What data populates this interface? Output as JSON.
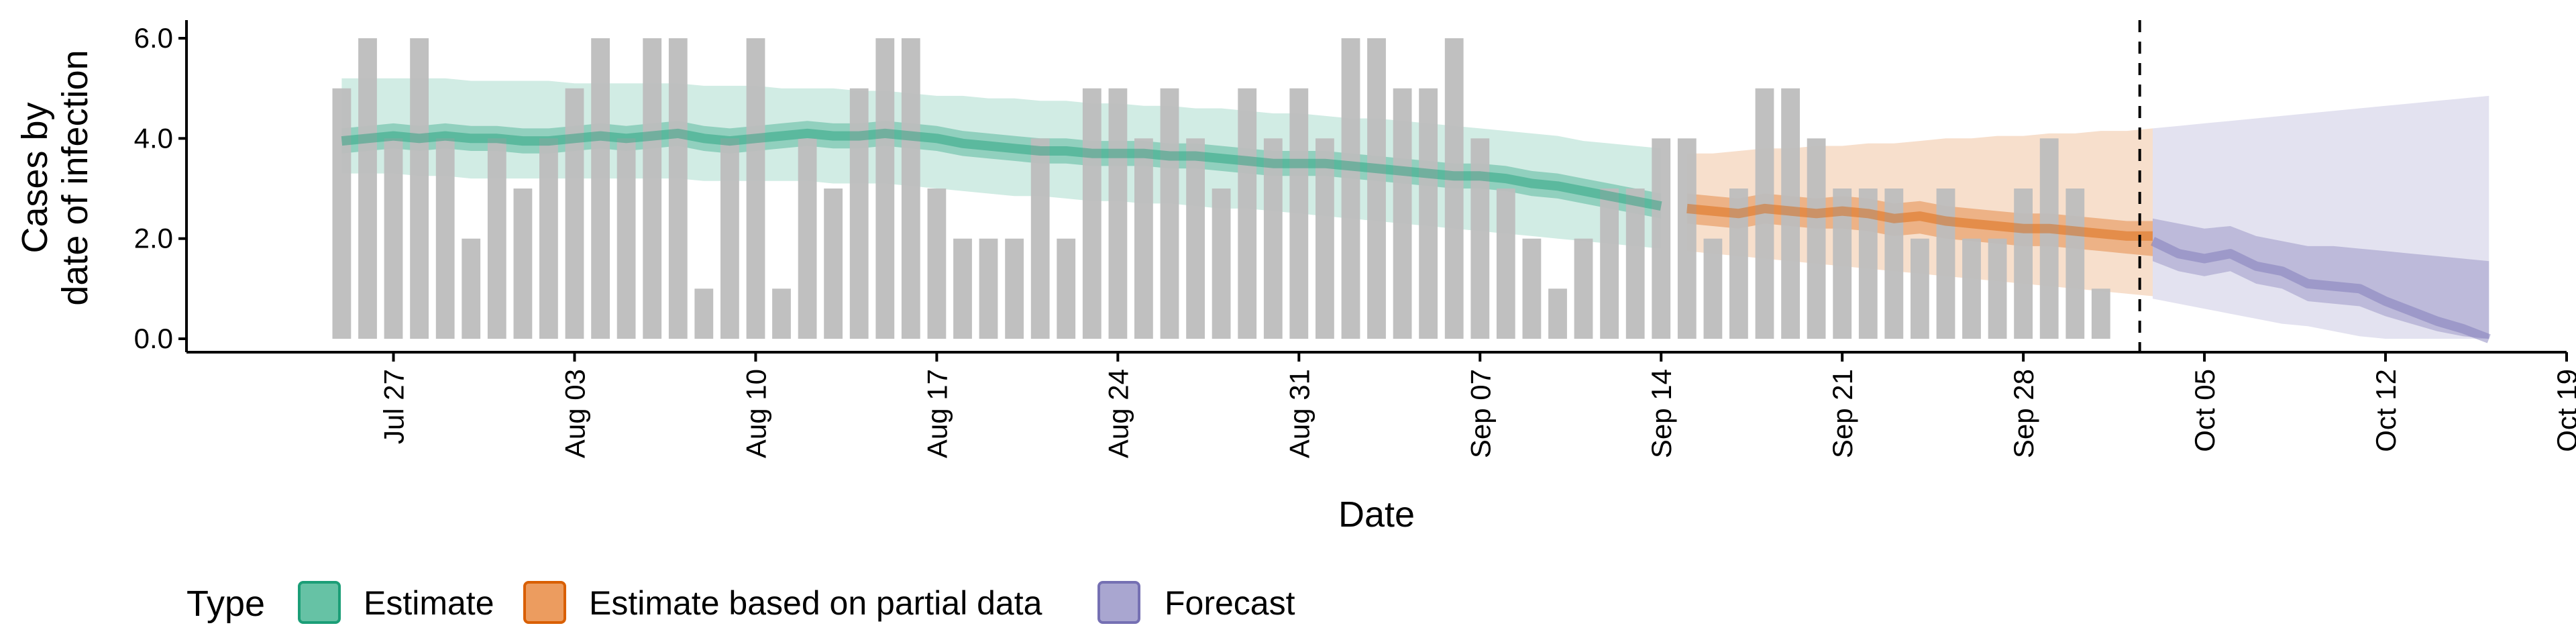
{
  "chart_data": {
    "type": "bar",
    "xlabel": "Date",
    "ylabel_lines": [
      "Cases by",
      "date of infection"
    ],
    "ylim": [
      0,
      6.0
    ],
    "y_ticks": [
      "0.0",
      "2.0",
      "4.0",
      "6.0"
    ],
    "x_ticks": [
      {
        "date": "2020-07-27",
        "label": "Jul 27"
      },
      {
        "date": "2020-08-03",
        "label": "Aug 03"
      },
      {
        "date": "2020-08-10",
        "label": "Aug 10"
      },
      {
        "date": "2020-08-17",
        "label": "Aug 17"
      },
      {
        "date": "2020-08-24",
        "label": "Aug 24"
      },
      {
        "date": "2020-08-31",
        "label": "Aug 31"
      },
      {
        "date": "2020-09-07",
        "label": "Sep 07"
      },
      {
        "date": "2020-09-14",
        "label": "Sep 14"
      },
      {
        "date": "2020-09-21",
        "label": "Sep 21"
      },
      {
        "date": "2020-09-28",
        "label": "Sep 28"
      },
      {
        "date": "2020-10-05",
        "label": "Oct 05"
      },
      {
        "date": "2020-10-12",
        "label": "Oct 12"
      },
      {
        "date": "2020-10-19",
        "label": "Oct 19"
      }
    ],
    "xlim": [
      "2020-07-19",
      "2020-10-19"
    ],
    "report_date": "2020-10-02",
    "bars": {
      "start_date": "2020-07-25",
      "values": [
        5,
        6,
        4,
        6,
        4,
        2,
        4,
        3,
        4,
        5,
        6,
        4,
        6,
        6,
        1,
        4,
        6,
        1,
        4,
        3,
        5,
        6,
        6,
        3,
        2,
        2,
        2,
        4,
        2,
        5,
        5,
        4,
        5,
        4,
        3,
        5,
        4,
        5,
        4,
        6,
        6,
        5,
        5,
        6,
        4,
        3,
        2,
        1,
        2,
        3,
        3,
        4,
        4,
        2,
        3,
        5,
        5,
        4,
        3,
        3,
        3,
        2,
        3,
        2,
        2,
        3,
        4,
        3,
        1
      ],
      "color": "#bdbdbd"
    },
    "legend": {
      "title": "Type",
      "items": [
        {
          "label": "Estimate",
          "fill": "#66c2a5",
          "stroke": "#1b9e77"
        },
        {
          "label": "Estimate based on partial data",
          "fill": "#ec9c5f",
          "stroke": "#d95f02"
        },
        {
          "label": "Forecast",
          "fill": "#a9a6d0",
          "stroke": "#7570b3"
        }
      ]
    },
    "series": [
      {
        "type": "Estimate",
        "color": "#1b9e77",
        "start_date": "2020-07-25",
        "median": [
          3.95,
          4.0,
          4.05,
          4.0,
          4.05,
          4.0,
          4.0,
          3.95,
          3.95,
          4.0,
          4.05,
          4.0,
          4.05,
          4.1,
          4.0,
          3.95,
          4.0,
          4.05,
          4.1,
          4.05,
          4.05,
          4.1,
          4.05,
          4.0,
          3.9,
          3.85,
          3.8,
          3.75,
          3.75,
          3.7,
          3.7,
          3.7,
          3.65,
          3.65,
          3.6,
          3.55,
          3.5,
          3.5,
          3.5,
          3.45,
          3.4,
          3.35,
          3.3,
          3.25,
          3.25,
          3.2,
          3.1,
          3.05,
          2.95,
          2.85,
          2.75,
          2.65
        ],
        "inner_lo": [
          3.7,
          3.75,
          3.8,
          3.75,
          3.8,
          3.75,
          3.75,
          3.7,
          3.7,
          3.75,
          3.8,
          3.75,
          3.8,
          3.85,
          3.75,
          3.7,
          3.75,
          3.8,
          3.85,
          3.8,
          3.8,
          3.85,
          3.8,
          3.75,
          3.65,
          3.6,
          3.55,
          3.5,
          3.5,
          3.45,
          3.45,
          3.45,
          3.4,
          3.4,
          3.35,
          3.3,
          3.25,
          3.25,
          3.25,
          3.2,
          3.15,
          3.1,
          3.05,
          3.0,
          3.0,
          2.95,
          2.85,
          2.8,
          2.7,
          2.6,
          2.5,
          2.4
        ],
        "inner_hi": [
          4.2,
          4.25,
          4.3,
          4.25,
          4.3,
          4.25,
          4.25,
          4.2,
          4.2,
          4.25,
          4.3,
          4.25,
          4.3,
          4.35,
          4.25,
          4.2,
          4.25,
          4.3,
          4.35,
          4.3,
          4.3,
          4.35,
          4.3,
          4.25,
          4.15,
          4.1,
          4.05,
          4.0,
          4.0,
          3.95,
          3.95,
          3.95,
          3.9,
          3.9,
          3.85,
          3.8,
          3.75,
          3.75,
          3.75,
          3.7,
          3.65,
          3.6,
          3.55,
          3.5,
          3.5,
          3.45,
          3.35,
          3.3,
          3.2,
          3.1,
          3.0,
          2.9
        ],
        "outer_lo": [
          3.3,
          3.3,
          3.3,
          3.25,
          3.25,
          3.2,
          3.2,
          3.2,
          3.2,
          3.2,
          3.2,
          3.2,
          3.2,
          3.2,
          3.15,
          3.15,
          3.15,
          3.15,
          3.15,
          3.1,
          3.1,
          3.1,
          3.05,
          3.0,
          2.95,
          2.9,
          2.85,
          2.85,
          2.8,
          2.75,
          2.75,
          2.7,
          2.7,
          2.65,
          2.6,
          2.6,
          2.55,
          2.5,
          2.45,
          2.4,
          2.35,
          2.3,
          2.25,
          2.2,
          2.15,
          2.1,
          2.05,
          2.0,
          1.95,
          1.9,
          1.85,
          1.8
        ],
        "outer_hi": [
          5.2,
          5.2,
          5.2,
          5.2,
          5.2,
          5.15,
          5.15,
          5.15,
          5.15,
          5.1,
          5.1,
          5.1,
          5.1,
          5.1,
          5.05,
          5.05,
          5.05,
          5.0,
          5.0,
          5.0,
          4.95,
          4.95,
          4.9,
          4.85,
          4.85,
          4.8,
          4.8,
          4.75,
          4.75,
          4.7,
          4.7,
          4.65,
          4.65,
          4.6,
          4.6,
          4.55,
          4.5,
          4.5,
          4.45,
          4.4,
          4.4,
          4.35,
          4.3,
          4.25,
          4.2,
          4.15,
          4.1,
          4.05,
          3.95,
          3.9,
          3.85,
          3.8
        ]
      },
      {
        "type": "Estimate based on partial data",
        "color": "#d95f02",
        "start_date": "2020-09-15",
        "median": [
          2.6,
          2.55,
          2.5,
          2.6,
          2.55,
          2.5,
          2.55,
          2.5,
          2.4,
          2.45,
          2.35,
          2.3,
          2.25,
          2.2,
          2.2,
          2.15,
          2.1,
          2.05,
          2.05
        ],
        "inner_lo": [
          2.3,
          2.25,
          2.2,
          2.3,
          2.25,
          2.2,
          2.2,
          2.15,
          2.05,
          2.1,
          2.0,
          1.95,
          1.9,
          1.85,
          1.85,
          1.8,
          1.75,
          1.7,
          1.65
        ],
        "inner_hi": [
          2.9,
          2.85,
          2.8,
          2.9,
          2.85,
          2.8,
          2.85,
          2.8,
          2.7,
          2.75,
          2.65,
          2.6,
          2.55,
          2.5,
          2.5,
          2.45,
          2.4,
          2.35,
          2.35
        ],
        "outer_lo": [
          1.75,
          1.7,
          1.65,
          1.6,
          1.55,
          1.5,
          1.45,
          1.4,
          1.35,
          1.3,
          1.25,
          1.2,
          1.15,
          1.1,
          1.05,
          1.0,
          0.95,
          0.9,
          0.85
        ],
        "outer_hi": [
          3.7,
          3.7,
          3.75,
          3.8,
          3.8,
          3.85,
          3.85,
          3.9,
          3.9,
          3.95,
          4.0,
          4.0,
          4.05,
          4.05,
          4.1,
          4.1,
          4.15,
          4.15,
          4.2
        ]
      },
      {
        "type": "Forecast",
        "color": "#7570b3",
        "start_date": "2020-10-03",
        "median": [
          1.95,
          1.7,
          1.6,
          1.7,
          1.45,
          1.35,
          1.1,
          1.05,
          1.0,
          0.75,
          0.55,
          0.35,
          0.2,
          0.0
        ],
        "inner_lo": [
          1.55,
          1.35,
          1.25,
          1.35,
          1.1,
          1.0,
          0.75,
          0.7,
          0.65,
          0.45,
          0.3,
          0.15,
          0.05,
          0.0
        ],
        "inner_hi": [
          2.4,
          2.3,
          2.2,
          2.25,
          2.05,
          1.95,
          1.85,
          1.85,
          1.8,
          1.75,
          1.7,
          1.65,
          1.6,
          1.55
        ],
        "outer_lo": [
          0.8,
          0.7,
          0.6,
          0.5,
          0.4,
          0.3,
          0.25,
          0.15,
          0.05,
          0.0,
          0.0,
          0.0,
          0.0,
          0.0
        ],
        "outer_hi": [
          4.2,
          4.25,
          4.3,
          4.35,
          4.4,
          4.45,
          4.5,
          4.55,
          4.6,
          4.65,
          4.7,
          4.75,
          4.8,
          4.85
        ]
      }
    ]
  }
}
